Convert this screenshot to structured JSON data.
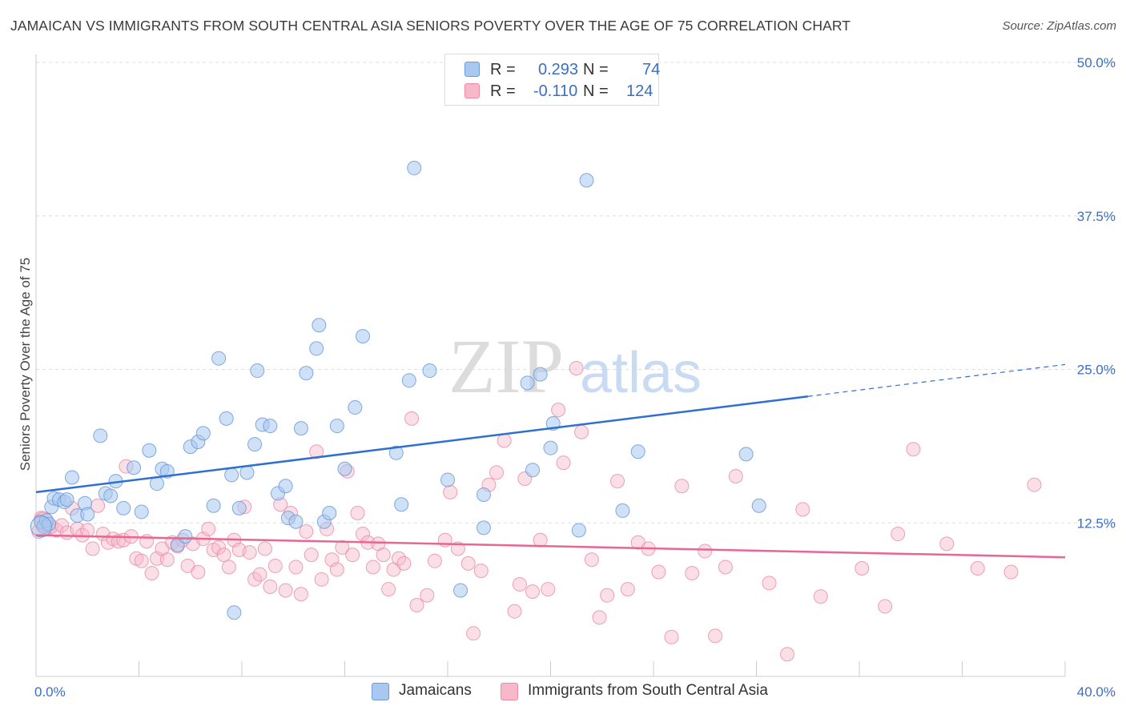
{
  "title": "JAMAICAN VS IMMIGRANTS FROM SOUTH CENTRAL ASIA SENIORS POVERTY OVER THE AGE OF 75 CORRELATION CHART",
  "source": "Source: ZipAtlas.com",
  "watermark": {
    "zip": "ZIP",
    "atlas": "atlas"
  },
  "legend": {
    "rows": [
      {
        "r_label": "R =",
        "r_value": "0.293",
        "n_label": "N =",
        "n_value": "74",
        "color": "#a8c8f0"
      },
      {
        "r_label": "R =",
        "r_value": "-0.110",
        "n_label": "N =",
        "n_value": "124",
        "color": "#f7b8ca"
      }
    ]
  },
  "bottom_legend": [
    {
      "label": "Jamaicans",
      "color": "#a8c8f0"
    },
    {
      "label": "Immigrants from South Central Asia",
      "color": "#f7b8ca"
    }
  ],
  "colors": {
    "blue_fill": "#a8c8f0",
    "blue_stroke": "#6f9ad8",
    "blue_line": "#2f6fd0",
    "pink_fill": "#f7b8ca",
    "pink_stroke": "#e98aa6",
    "pink_line": "#e86690",
    "axis_label": "#3a6fc4",
    "grid": "#dddddd"
  },
  "chart_data": {
    "type": "scatter",
    "title": "JAMAICAN VS IMMIGRANTS FROM SOUTH CENTRAL ASIA SENIORS POVERTY OVER THE AGE OF 75 CORRELATION CHART",
    "xlabel": "",
    "ylabel": "Seniors Poverty Over the Age of 75",
    "xlim": [
      0,
      40
    ],
    "ylim": [
      0,
      50
    ],
    "x_tick_labels": [
      "0.0%",
      "40.0%"
    ],
    "y_ticks": [
      12.5,
      25.0,
      37.5,
      50.0
    ],
    "y_tick_labels": [
      "12.5%",
      "25.0%",
      "37.5%",
      "50.0%"
    ],
    "grid": "horizontal dashed",
    "legend_position": "top-center",
    "series": [
      {
        "name": "Jamaicans",
        "r": 0.293,
        "n": 74,
        "trend": {
          "x0": 0,
          "y0": 15.0,
          "x1": 30,
          "y1": 22.8,
          "dashed_to_x": 40,
          "dashed_to_y": 25.4
        },
        "points": [
          [
            0.2,
            12.6
          ],
          [
            0.3,
            12.2
          ],
          [
            0.4,
            12.7
          ],
          [
            0.5,
            12.4
          ],
          [
            0.6,
            13.8
          ],
          [
            0.7,
            14.5
          ],
          [
            0.9,
            14.4
          ],
          [
            1.1,
            14.2
          ],
          [
            1.2,
            14.4
          ],
          [
            1.4,
            16.2
          ],
          [
            1.6,
            13.1
          ],
          [
            1.9,
            14.1
          ],
          [
            2.0,
            13.2
          ],
          [
            2.5,
            19.6
          ],
          [
            2.7,
            14.9
          ],
          [
            2.9,
            14.7
          ],
          [
            3.1,
            15.9
          ],
          [
            3.4,
            13.7
          ],
          [
            3.8,
            17.0
          ],
          [
            4.1,
            13.4
          ],
          [
            4.4,
            18.4
          ],
          [
            4.7,
            15.7
          ],
          [
            4.9,
            16.9
          ],
          [
            5.1,
            16.7
          ],
          [
            5.5,
            10.7
          ],
          [
            5.8,
            11.4
          ],
          [
            6.0,
            18.7
          ],
          [
            6.3,
            19.1
          ],
          [
            6.5,
            19.8
          ],
          [
            6.9,
            13.9
          ],
          [
            7.1,
            25.9
          ],
          [
            7.4,
            21.0
          ],
          [
            7.6,
            16.4
          ],
          [
            7.7,
            5.2
          ],
          [
            7.9,
            13.7
          ],
          [
            8.2,
            16.6
          ],
          [
            8.5,
            18.9
          ],
          [
            8.6,
            24.9
          ],
          [
            8.8,
            20.5
          ],
          [
            9.1,
            20.4
          ],
          [
            9.4,
            14.9
          ],
          [
            9.7,
            15.5
          ],
          [
            9.8,
            12.9
          ],
          [
            10.1,
            12.6
          ],
          [
            10.3,
            20.2
          ],
          [
            10.5,
            24.7
          ],
          [
            10.9,
            26.7
          ],
          [
            11.0,
            28.6
          ],
          [
            11.2,
            12.6
          ],
          [
            11.4,
            13.3
          ],
          [
            11.7,
            20.4
          ],
          [
            12.0,
            16.9
          ],
          [
            12.4,
            21.9
          ],
          [
            12.7,
            27.7
          ],
          [
            14.0,
            18.2
          ],
          [
            14.2,
            14.0
          ],
          [
            14.5,
            24.1
          ],
          [
            14.7,
            41.4
          ],
          [
            15.3,
            24.9
          ],
          [
            16.0,
            16.0
          ],
          [
            16.5,
            7.0
          ],
          [
            17.4,
            14.8
          ],
          [
            17.4,
            12.1
          ],
          [
            19.1,
            23.9
          ],
          [
            19.3,
            16.8
          ],
          [
            19.6,
            24.6
          ],
          [
            20.0,
            18.6
          ],
          [
            20.1,
            20.6
          ],
          [
            21.1,
            11.9
          ],
          [
            21.4,
            40.4
          ],
          [
            22.8,
            13.5
          ],
          [
            23.4,
            18.3
          ],
          [
            27.6,
            18.1
          ],
          [
            28.1,
            13.9
          ]
        ]
      },
      {
        "name": "Immigrants from South Central Asia",
        "r": -0.11,
        "n": 124,
        "trend": {
          "x0": 0,
          "y0": 11.5,
          "x1": 40,
          "y1": 9.7
        },
        "points": [
          [
            0.1,
            11.8
          ],
          [
            0.2,
            12.9
          ],
          [
            0.3,
            12.4
          ],
          [
            0.5,
            12.1
          ],
          [
            0.6,
            12.2
          ],
          [
            0.8,
            11.9
          ],
          [
            1.0,
            12.3
          ],
          [
            1.2,
            11.7
          ],
          [
            1.4,
            13.7
          ],
          [
            1.6,
            12.0
          ],
          [
            1.8,
            11.5
          ],
          [
            2.0,
            11.9
          ],
          [
            2.2,
            10.4
          ],
          [
            2.4,
            13.9
          ],
          [
            2.6,
            11.6
          ],
          [
            2.8,
            10.9
          ],
          [
            3.0,
            11.2
          ],
          [
            3.2,
            11.0
          ],
          [
            3.4,
            11.1
          ],
          [
            3.5,
            17.1
          ],
          [
            3.7,
            11.4
          ],
          [
            3.9,
            9.6
          ],
          [
            4.1,
            9.4
          ],
          [
            4.3,
            11.0
          ],
          [
            4.5,
            8.4
          ],
          [
            4.7,
            9.6
          ],
          [
            4.9,
            10.4
          ],
          [
            5.1,
            9.5
          ],
          [
            5.3,
            10.9
          ],
          [
            5.5,
            10.6
          ],
          [
            5.7,
            11.1
          ],
          [
            5.9,
            9.0
          ],
          [
            6.1,
            10.8
          ],
          [
            6.3,
            8.5
          ],
          [
            6.5,
            11.2
          ],
          [
            6.7,
            12.0
          ],
          [
            6.9,
            10.3
          ],
          [
            7.1,
            10.5
          ],
          [
            7.3,
            9.9
          ],
          [
            7.5,
            8.9
          ],
          [
            7.7,
            11.1
          ],
          [
            7.9,
            10.3
          ],
          [
            8.1,
            13.8
          ],
          [
            8.3,
            10.1
          ],
          [
            8.5,
            7.9
          ],
          [
            8.7,
            8.3
          ],
          [
            8.9,
            10.4
          ],
          [
            9.1,
            7.3
          ],
          [
            9.3,
            9.0
          ],
          [
            9.5,
            14.0
          ],
          [
            9.7,
            7.0
          ],
          [
            9.9,
            13.3
          ],
          [
            10.1,
            8.9
          ],
          [
            10.3,
            6.7
          ],
          [
            10.5,
            11.8
          ],
          [
            10.7,
            9.9
          ],
          [
            10.9,
            18.3
          ],
          [
            11.1,
            7.9
          ],
          [
            11.3,
            12.0
          ],
          [
            11.5,
            9.5
          ],
          [
            11.7,
            8.7
          ],
          [
            11.9,
            10.5
          ],
          [
            12.1,
            16.7
          ],
          [
            12.3,
            9.9
          ],
          [
            12.5,
            13.3
          ],
          [
            12.7,
            11.6
          ],
          [
            12.9,
            10.9
          ],
          [
            13.1,
            8.9
          ],
          [
            13.3,
            10.8
          ],
          [
            13.5,
            9.9
          ],
          [
            13.7,
            7.1
          ],
          [
            13.9,
            8.7
          ],
          [
            14.1,
            9.6
          ],
          [
            14.3,
            9.2
          ],
          [
            14.6,
            21.0
          ],
          [
            14.8,
            5.8
          ],
          [
            15.2,
            6.6
          ],
          [
            15.5,
            9.4
          ],
          [
            15.9,
            11.1
          ],
          [
            16.1,
            15.0
          ],
          [
            16.4,
            10.4
          ],
          [
            16.8,
            9.2
          ],
          [
            17.0,
            3.5
          ],
          [
            17.3,
            8.6
          ],
          [
            17.6,
            15.6
          ],
          [
            17.9,
            16.6
          ],
          [
            18.2,
            19.2
          ],
          [
            18.6,
            5.3
          ],
          [
            18.8,
            7.5
          ],
          [
            19.0,
            16.1
          ],
          [
            19.3,
            6.9
          ],
          [
            19.6,
            11.1
          ],
          [
            19.9,
            7.1
          ],
          [
            20.3,
            21.7
          ],
          [
            20.5,
            17.4
          ],
          [
            21.0,
            25.1
          ],
          [
            21.2,
            19.9
          ],
          [
            21.6,
            9.5
          ],
          [
            21.9,
            4.8
          ],
          [
            22.2,
            6.6
          ],
          [
            22.6,
            15.9
          ],
          [
            23.0,
            7.1
          ],
          [
            23.4,
            10.9
          ],
          [
            23.8,
            10.4
          ],
          [
            24.2,
            8.5
          ],
          [
            24.7,
            3.2
          ],
          [
            25.1,
            15.5
          ],
          [
            25.5,
            8.4
          ],
          [
            26.0,
            10.2
          ],
          [
            26.4,
            3.3
          ],
          [
            26.8,
            8.9
          ],
          [
            27.2,
            16.3
          ],
          [
            28.5,
            7.6
          ],
          [
            29.2,
            1.8
          ],
          [
            29.8,
            13.6
          ],
          [
            30.5,
            6.5
          ],
          [
            32.1,
            8.8
          ],
          [
            33.0,
            5.7
          ],
          [
            33.5,
            11.6
          ],
          [
            34.1,
            18.5
          ],
          [
            35.4,
            10.8
          ],
          [
            36.6,
            8.8
          ],
          [
            37.9,
            8.5
          ],
          [
            38.8,
            15.6
          ]
        ]
      }
    ]
  }
}
